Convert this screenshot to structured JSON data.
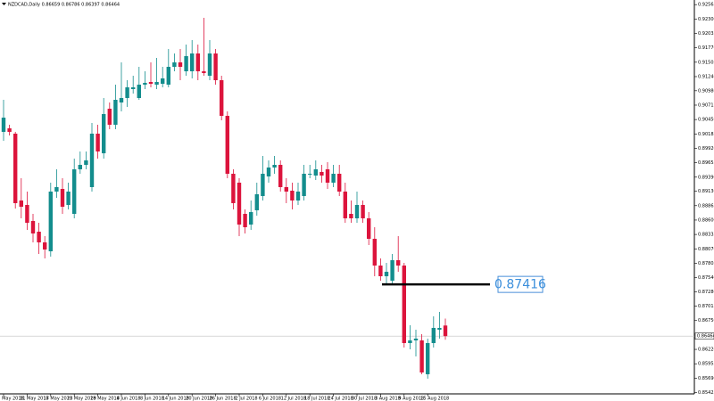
{
  "chart_data": {
    "type": "candlestick",
    "title": "NZDCAD,Daily  0.86659 0.86786 0.86397 0.86464",
    "categories": [
      "7 May 2018",
      null,
      null,
      null,
      "11 May 2018",
      null,
      null,
      null,
      "17 May 2018",
      null,
      null,
      null,
      "23 May 2018",
      null,
      null,
      null,
      "29 May 2018",
      null,
      null,
      null,
      "4 Jun 2018",
      null,
      null,
      null,
      "8 Jun 2018",
      null,
      null,
      null,
      "14 Jun 2018",
      null,
      null,
      null,
      "20 Jun 2018",
      null,
      null,
      null,
      "26 Jun 2018",
      null,
      null,
      null,
      "2 Jul 2018",
      null,
      null,
      null,
      "6 Jul 2018",
      null,
      null,
      null,
      "12 Jul 2018",
      null,
      null,
      null,
      "18 Jul 2018",
      null,
      null,
      null,
      "24 Jul 2018",
      null,
      null,
      null,
      "30 Jul 2018",
      null,
      null,
      null,
      "3 Aug 2018",
      null,
      null,
      null,
      "9 Aug 2018",
      null,
      null,
      null,
      "15 Aug 2018",
      null,
      null,
      null
    ],
    "open": [
      0.90223,
      0.90288,
      0.9019,
      0.8896,
      0.88878,
      0.88583,
      0.88386,
      0.88189,
      0.88025,
      0.89124,
      0.89173,
      0.88878,
      0.88714,
      0.89534,
      0.89616,
      0.89206,
      0.9019,
      0.89829,
      0.90649,
      0.90354,
      0.90764,
      0.90846,
      0.9101,
      0.90846,
      0.91092,
      0.91141,
      0.91092,
      0.91108,
      0.91092,
      0.9142,
      0.91502,
      0.91338,
      0.91338,
      0.91666,
      0.91338,
      0.91256,
      0.91666,
      0.91174,
      0.90518,
      0.89452,
      0.89288,
      0.88714,
      0.88517,
      0.8878,
      0.89042,
      0.89403,
      0.89567,
      0.89616,
      0.89206,
      0.8914,
      0.8896,
      0.89042,
      0.89436,
      0.89419,
      0.89485,
      0.89534,
      0.89288,
      0.89452,
      0.89124,
      0.88714,
      0.88632,
      0.88878,
      0.88632,
      0.88255,
      0.87763,
      0.87566,
      0.87484,
      0.87861,
      0.87763,
      0.86336,
      0.86385,
      0.86385,
      0.85762,
      0.86336,
      0.86582,
      0.86659
    ],
    "high": [
      0.90813,
      0.90354,
      0.90223,
      0.8937,
      0.89124,
      0.88714,
      0.8855,
      0.88304,
      0.89288,
      0.89534,
      0.8937,
      0.89288,
      0.89731,
      0.89862,
      0.89862,
      0.90387,
      0.90354,
      0.90846,
      0.90764,
      0.91092,
      0.91502,
      0.91174,
      0.91256,
      0.9142,
      0.91338,
      0.91502,
      0.91584,
      0.9142,
      0.91748,
      0.91666,
      0.91748,
      0.9183,
      0.91912,
      0.9183,
      0.92322,
      0.91912,
      0.91748,
      0.91256,
      0.906,
      0.89534,
      0.8937,
      0.88796,
      0.8896,
      0.89288,
      0.8978,
      0.89698,
      0.8978,
      0.89698,
      0.8937,
      0.89288,
      0.89288,
      0.89616,
      0.89616,
      0.89698,
      0.89616,
      0.89665,
      0.89616,
      0.89616,
      0.89288,
      0.8896,
      0.89124,
      0.8896,
      0.88747,
      0.88468,
      0.87894,
      0.87812,
      0.87976,
      0.88304,
      0.87812,
      0.86664,
      0.86582,
      0.865,
      0.86418,
      0.86828,
      0.8691,
      0.86786
    ],
    "low": [
      0.90059,
      0.90157,
      0.88812,
      0.88632,
      0.88419,
      0.88189,
      0.87976,
      0.87894,
      0.87927,
      0.89009,
      0.88714,
      0.88796,
      0.88632,
      0.89452,
      0.89534,
      0.89124,
      0.89731,
      0.89731,
      0.90272,
      0.90272,
      0.906,
      0.90682,
      0.90928,
      0.90813,
      0.9101,
      0.91043,
      0.9101,
      0.91043,
      0.91043,
      0.91338,
      0.91174,
      0.91256,
      0.91207,
      0.91174,
      0.91256,
      0.91174,
      0.91092,
      0.90436,
      0.8937,
      0.88796,
      0.88304,
      0.88353,
      0.88419,
      0.88681,
      0.8896,
      0.89288,
      0.89452,
      0.89124,
      0.88911,
      0.88796,
      0.88878,
      0.8896,
      0.8937,
      0.89337,
      0.89288,
      0.89173,
      0.89206,
      0.89042,
      0.8855,
      0.8855,
      0.8855,
      0.8855,
      0.8814,
      0.87566,
      0.87484,
      0.87435,
      0.87435,
      0.87648,
      0.86254,
      0.86221,
      0.8609,
      0.85762,
      0.85681,
      0.86254,
      0.86418,
      0.86397
    ],
    "close": [
      0.90485,
      0.90223,
      0.88911,
      0.88845,
      0.8855,
      0.88353,
      0.88189,
      0.88058,
      0.89124,
      0.89206,
      0.88845,
      0.89124,
      0.89534,
      0.89616,
      0.89698,
      0.9019,
      0.89862,
      0.90551,
      0.90354,
      0.90813,
      0.90846,
      0.91043,
      0.91043,
      0.91092,
      0.91125,
      0.91108,
      0.91141,
      0.91207,
      0.9142,
      0.91502,
      0.9142,
      0.91617,
      0.91666,
      0.91338,
      0.91305,
      0.91666,
      0.91174,
      0.90518,
      0.89452,
      0.88911,
      0.88517,
      0.88468,
      0.88747,
      0.89075,
      0.89452,
      0.89567,
      0.89616,
      0.89206,
      0.89124,
      0.8896,
      0.89124,
      0.89452,
      0.89452,
      0.89534,
      0.89419,
      0.89288,
      0.89452,
      0.89124,
      0.88632,
      0.88632,
      0.88878,
      0.88632,
      0.88255,
      0.87763,
      0.87566,
      0.87648,
      0.87861,
      0.87763,
      0.86336,
      0.86385,
      0.86418,
      0.85795,
      0.86336,
      0.86615,
      0.86615,
      0.86464
    ],
    "up_color": "#138d8d",
    "down_color": "#dc143c",
    "ylim": [
      0.85401,
      0.9265
    ],
    "yticks": [
      0.92565,
      {
        "value": 0.923,
        "label": "0.92300"
      },
      0.92035,
      {
        "value": 0.9177,
        "label": "0.91770"
      },
      0.91505,
      {
        "value": 0.9124,
        "label": "0.91240"
      },
      {
        "value": 0.9098,
        "label": "0.90980"
      },
      0.90715,
      {
        "value": 0.9045,
        "label": "0.90450"
      },
      0.90185,
      {
        "value": 0.8992,
        "label": "0.89920"
      },
      0.89655,
      {
        "value": 0.8939,
        "label": "0.89390"
      },
      {
        "value": 0.8913,
        "label": "0.89130"
      },
      0.88865,
      {
        "value": 0.886,
        "label": "0.88600"
      },
      0.88335,
      {
        "value": 0.8807,
        "label": "0.88070"
      },
      0.87805,
      {
        "value": 0.8754,
        "label": "0.87540"
      },
      {
        "value": 0.8728,
        "label": "0.87280"
      },
      0.87015,
      {
        "value": 0.8675,
        "label": "0.86750"
      },
      {
        "value": 0.8622,
        "label": "0.86220"
      },
      0.85955,
      {
        "value": 0.8569,
        "label": "0.85690"
      },
      0.85425
    ],
    "current_price": 0.86464,
    "level": 0.87416
  }
}
